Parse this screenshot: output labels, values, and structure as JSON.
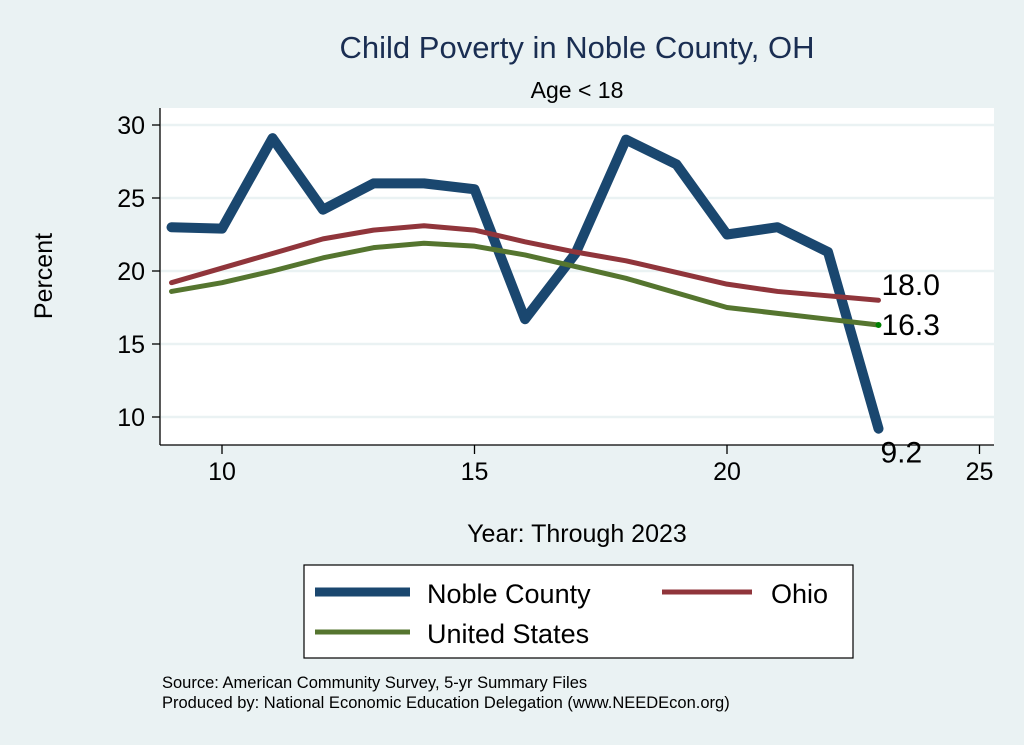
{
  "chart_data": {
    "type": "line",
    "title": "Child Poverty in Noble County, OH",
    "subtitle": "Age < 18",
    "xlabel": "Year: Through 2023",
    "ylabel": "Percent",
    "xlim": [
      8.7,
      25.3
    ],
    "ylim": [
      8.0,
      31.0
    ],
    "xticks": [
      10,
      15,
      20,
      25
    ],
    "yticks": [
      10,
      15,
      20,
      25,
      30
    ],
    "grid": true,
    "x": [
      9,
      10,
      11,
      12,
      13,
      14,
      15,
      16,
      17,
      18,
      19,
      20,
      21,
      22,
      23
    ],
    "series": [
      {
        "name": "Noble County",
        "color": "#1a476f",
        "values": [
          23.0,
          22.9,
          29.1,
          24.2,
          26.0,
          26.0,
          25.6,
          16.7,
          21.2,
          29.0,
          27.3,
          22.5,
          23.0,
          21.3,
          9.2
        ],
        "end_label": "9.2"
      },
      {
        "name": "Ohio",
        "color": "#90353b",
        "values": [
          19.2,
          20.2,
          21.2,
          22.2,
          22.8,
          23.1,
          22.8,
          22.0,
          21.3,
          20.7,
          19.9,
          19.1,
          18.6,
          18.3,
          18.0
        ],
        "end_label": "18.0"
      },
      {
        "name": "United States",
        "color": "#55752f",
        "values": [
          18.6,
          19.2,
          20.0,
          20.9,
          21.6,
          21.9,
          21.7,
          21.1,
          20.3,
          19.5,
          18.5,
          17.5,
          17.1,
          16.7,
          16.3
        ],
        "end_label": "16.3"
      }
    ],
    "legend": {
      "position": "bottom",
      "entries": [
        "Noble County",
        "Ohio",
        "United States"
      ]
    },
    "notes": [
      "Source: American Community Survey, 5-yr Summary Files",
      "Produced by: National Economic Education Delegation (www.NEEDEcon.org)"
    ]
  }
}
